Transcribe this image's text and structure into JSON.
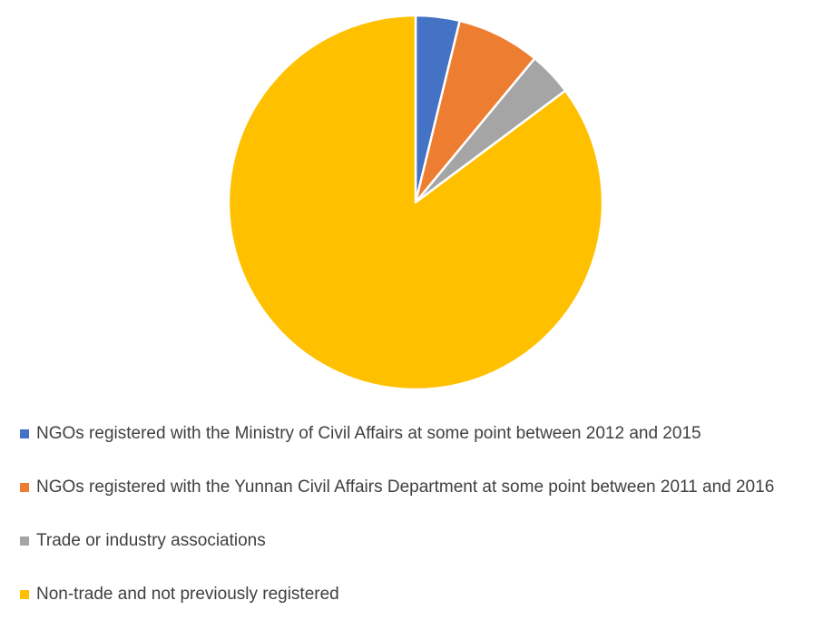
{
  "chart_data": {
    "type": "pie",
    "title": "",
    "legend_position": "bottom",
    "slices": [
      {
        "label": "NGOs registered with the Ministry of Civil Affairs at some point between 2012 and 2015",
        "value": 3.8,
        "color": "#4472C4"
      },
      {
        "label": "NGOs registered with the Yunnan Civil Affairs Department at some point between 2011 and 2016",
        "value": 7.2,
        "color": "#ED7D31"
      },
      {
        "label": "Trade or industry associations",
        "value": 3.8,
        "color": "#A5A5A5"
      },
      {
        "label": "Non-trade and not previously registered",
        "value": 85.2,
        "color": "#FFC000"
      }
    ]
  }
}
